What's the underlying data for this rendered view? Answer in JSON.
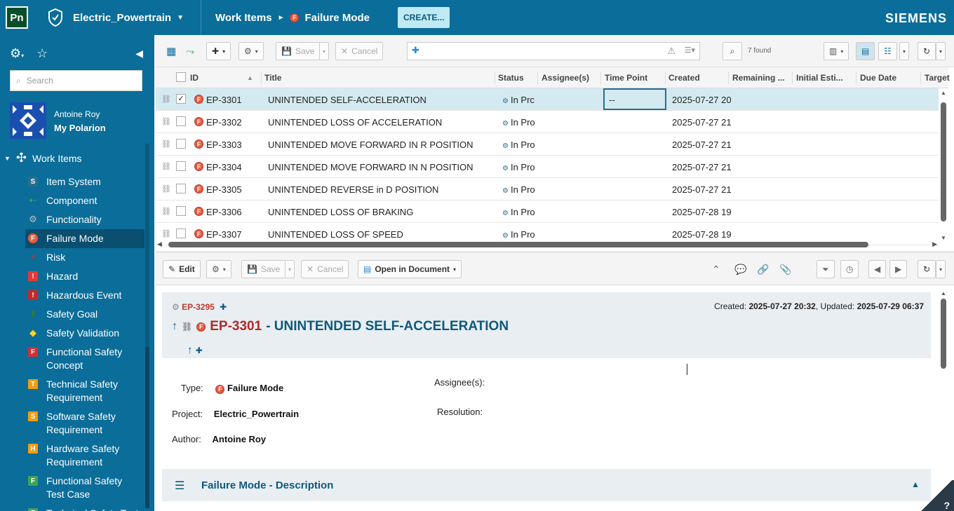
{
  "topbar": {
    "app_logo": "Pn",
    "project": "Electric_Powertrain",
    "crumb_root": "Work Items",
    "crumb_current": "Failure Mode",
    "create_label": "CREATE...",
    "brand": "SIEMENS"
  },
  "sidebar": {
    "search_placeholder": "Search",
    "user_name": "Antoine Roy",
    "my_polarion": "My Polarion",
    "work_items_label": "Work Items",
    "items": [
      {
        "label": "Item System",
        "icon": "S",
        "color": "#2a6d8f"
      },
      {
        "label": "Component",
        "icon": "component-icon",
        "color": "#3aa655"
      },
      {
        "label": "Functionality",
        "icon": "gear-icon",
        "color": "#bbbbbb"
      },
      {
        "label": "Failure Mode",
        "icon": "F",
        "color": "#e85a3a"
      },
      {
        "label": "Risk",
        "icon": "risk-icon",
        "color": "#d32f2f"
      },
      {
        "label": "Hazard",
        "icon": "!",
        "color": "#e53935"
      },
      {
        "label": "Hazardous Event",
        "icon": "!",
        "color": "#c62828"
      },
      {
        "label": "Safety Goal",
        "icon": "goal-icon",
        "color": "#2e7d32"
      },
      {
        "label": "Safety Validation",
        "icon": "validation-icon",
        "color": "#f9d423"
      },
      {
        "label": "Functional Safety Concept",
        "icon": "F",
        "color": "#d32f2f"
      },
      {
        "label": "Technical Safety Requirement",
        "icon": "T",
        "color": "#f39c12"
      },
      {
        "label": "Software Safety Requirement",
        "icon": "S",
        "color": "#f39c12"
      },
      {
        "label": "Hardware Safety Requirement",
        "icon": "H",
        "color": "#f39c12"
      },
      {
        "label": "Functional Safety Test Case",
        "icon": "F",
        "color": "#3aa655"
      },
      {
        "label": "Technical Safety Test Case",
        "icon": "T",
        "color": "#3aa655"
      }
    ]
  },
  "gridbar": {
    "save": "Save",
    "cancel": "Cancel",
    "found": "7 found"
  },
  "columns": {
    "id": "ID",
    "title": "Title",
    "status": "Status",
    "assignees": "Assignee(s)",
    "time_point": "Time Point",
    "created": "Created",
    "remaining": "Remaining ...",
    "initial": "Initial Esti...",
    "due": "Due Date",
    "target": "Target"
  },
  "rows": [
    {
      "id": "EP-3301",
      "title": "UNINTENDED SELF-ACCELERATION",
      "status": "In Prc",
      "time_point": "--",
      "created": "2025-07-27 20",
      "selected": true
    },
    {
      "id": "EP-3302",
      "title": "UNINTENDED LOSS OF ACCELERATION",
      "status": "In Pro",
      "time_point": "",
      "created": "2025-07-27 21",
      "selected": false
    },
    {
      "id": "EP-3303",
      "title": "UNINTENDED MOVE FORWARD IN R POSITION",
      "status": "In Pro",
      "time_point": "",
      "created": "2025-07-27 21",
      "selected": false
    },
    {
      "id": "EP-3304",
      "title": "UNINTENDED MOVE FORWARD IN N POSITION",
      "status": "In Pro",
      "time_point": "",
      "created": "2025-07-27 21",
      "selected": false
    },
    {
      "id": "EP-3305",
      "title": "UNINTENDED REVERSE in D POSITION",
      "status": "In Pro",
      "time_point": "",
      "created": "2025-07-27 21",
      "selected": false
    },
    {
      "id": "EP-3306",
      "title": "UNINTENDED LOSS OF BRAKING",
      "status": "In Pro",
      "time_point": "",
      "created": "2025-07-28 19",
      "selected": false
    },
    {
      "id": "EP-3307",
      "title": "UNINTENDED LOSS OF SPEED",
      "status": "In Pro",
      "time_point": "",
      "created": "2025-07-28 19",
      "selected": false
    }
  ],
  "detailbar": {
    "edit": "Edit",
    "save": "Save",
    "cancel": "Cancel",
    "open_in_document": "Open in Document"
  },
  "detail": {
    "parent_id": "EP-3295",
    "created_label": "Created:",
    "created_value": "2025-07-27 20:32",
    "updated_label": "Updated:",
    "updated_value": "2025-07-29 06:37",
    "id": "EP-3301",
    "title": "- UNINTENDED SELF-ACCELERATION",
    "type_label": "Type:",
    "type_value": "Failure Mode",
    "project_label": "Project:",
    "project_value": "Electric_Powertrain",
    "author_label": "Author:",
    "author_value": "Antoine Roy",
    "assignees_label": "Assignee(s):",
    "resolution_label": "Resolution:",
    "section_title": "Failure Mode - Description",
    "corner_text": "?"
  }
}
